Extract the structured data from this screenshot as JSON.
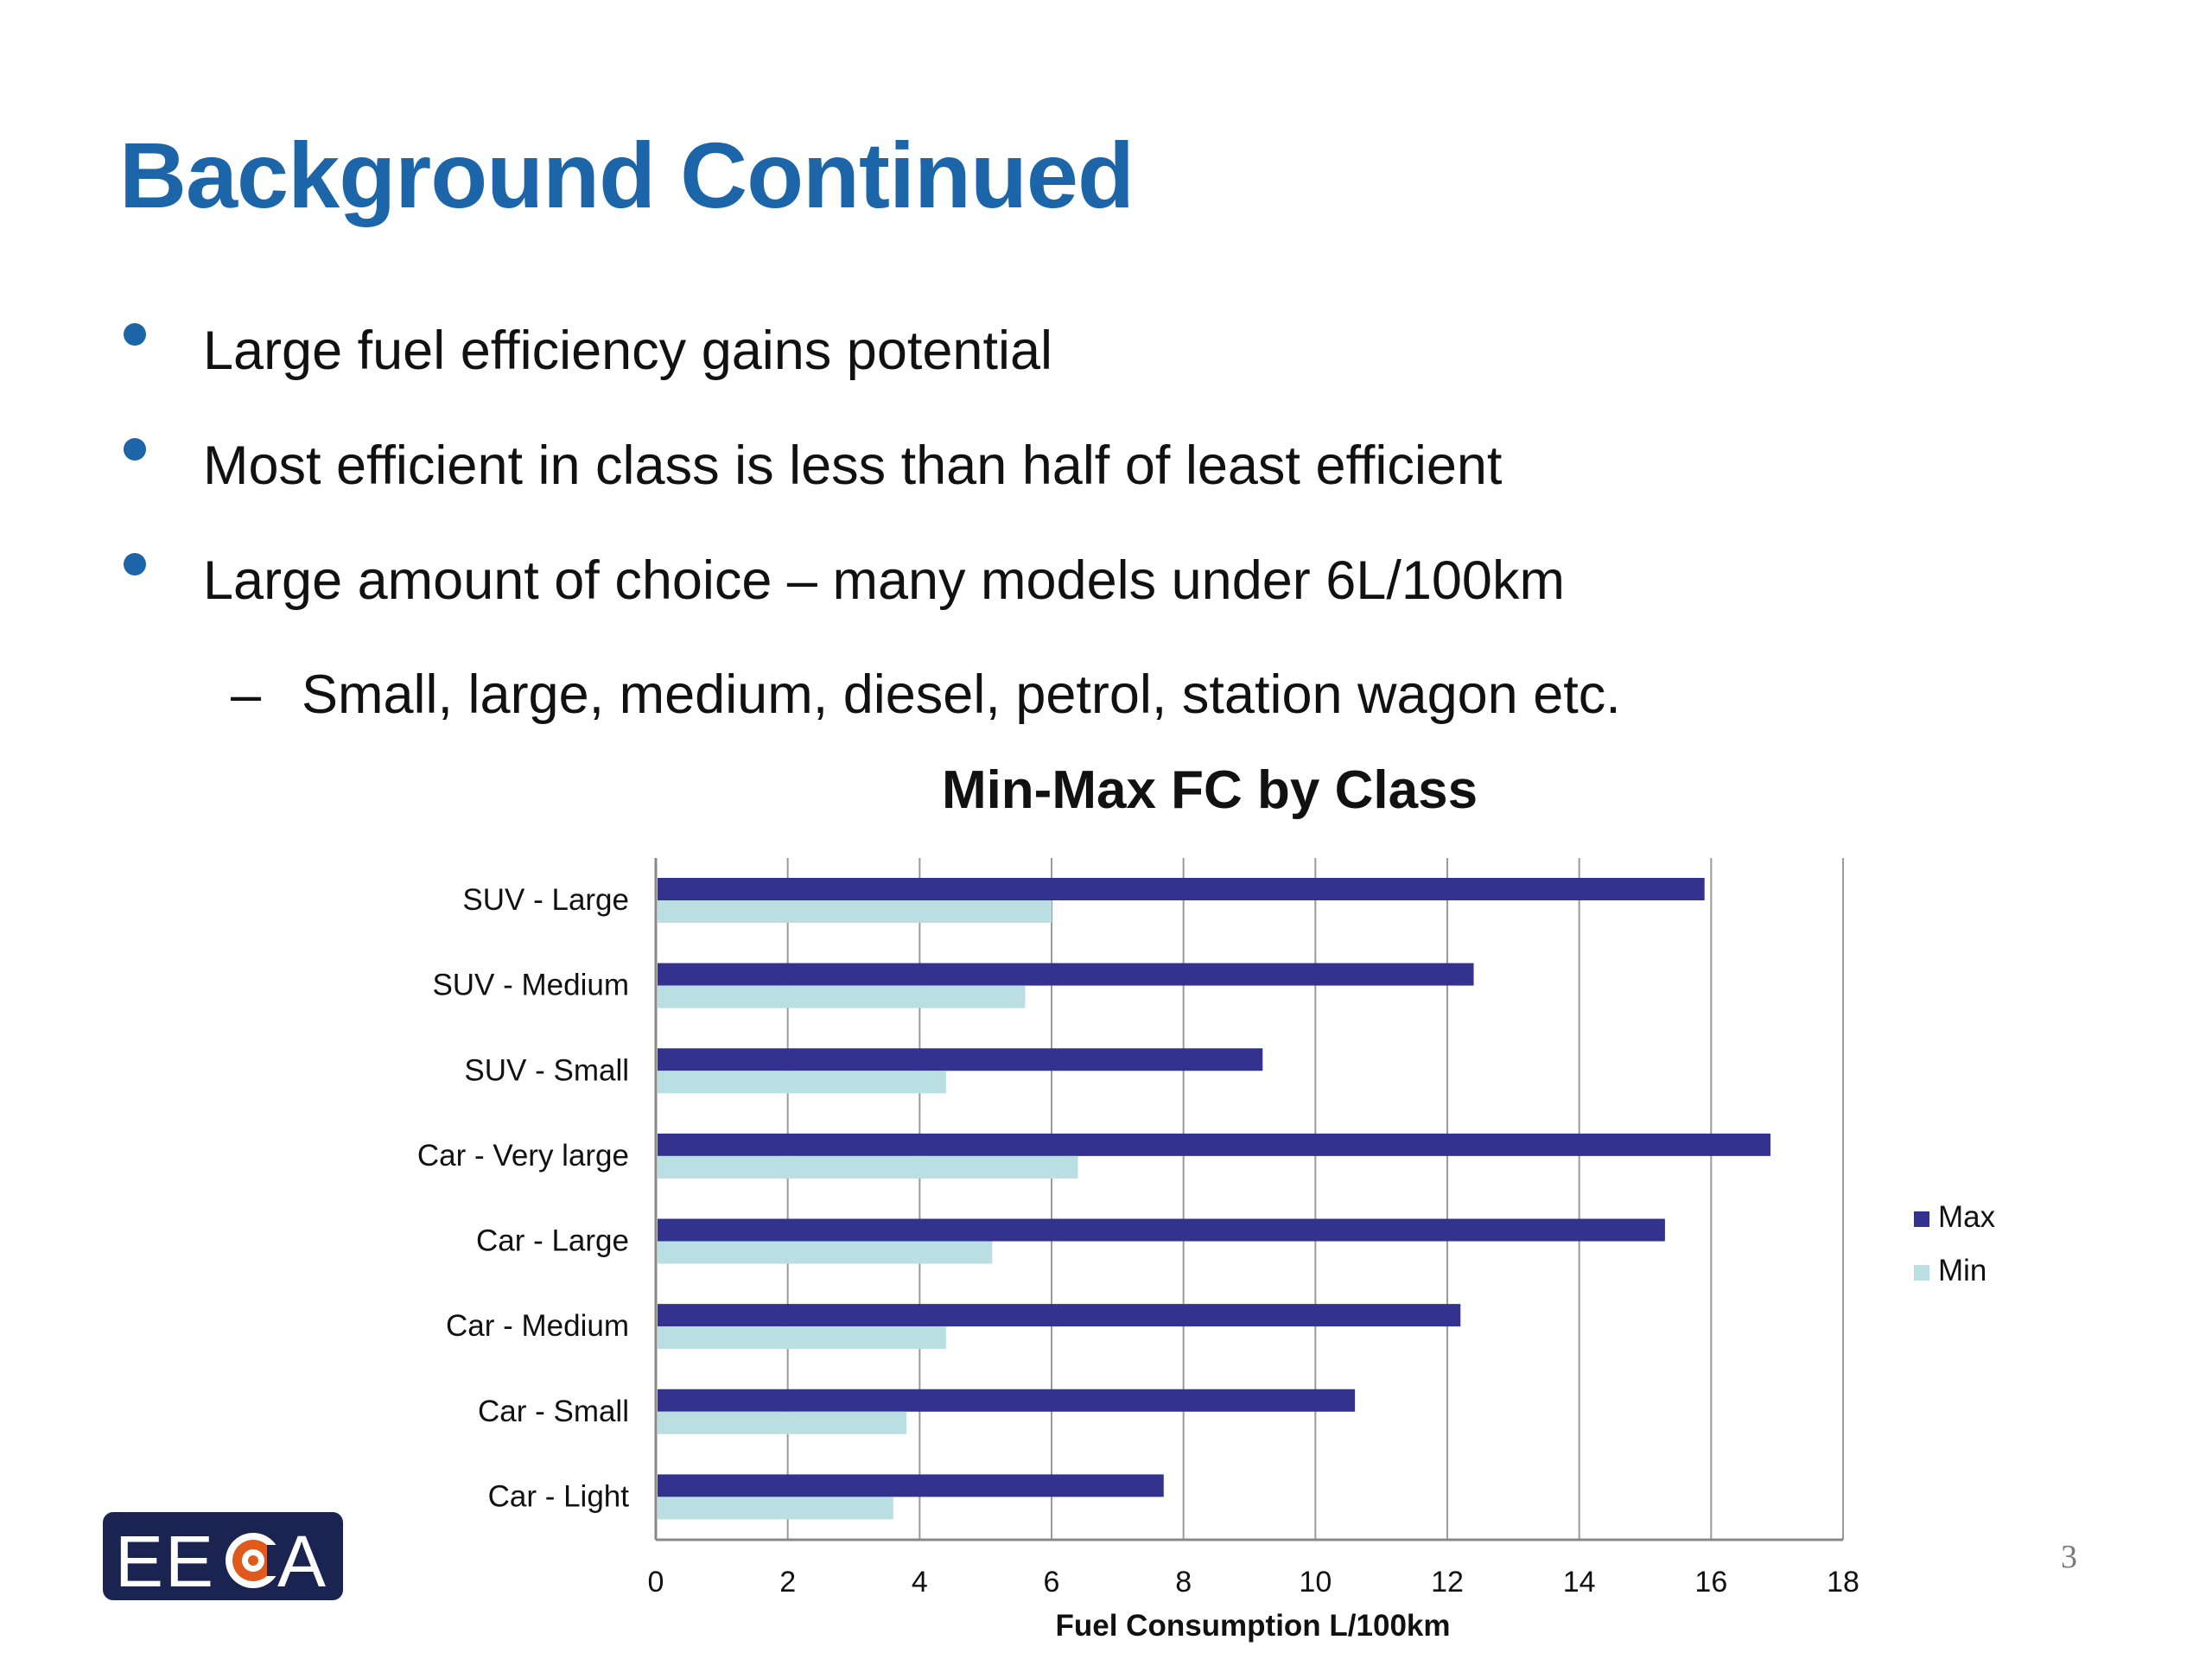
{
  "slide": {
    "title": "Background Continued",
    "bullets": [
      "Large fuel efficiency gains potential",
      "Most efficient in class is less than half of least efficient",
      "Large amount of choice – many models under 6L/100km"
    ],
    "sub_dash": "–",
    "sub_bullet": "Small, large, medium, diesel, petrol, station wagon etc.",
    "page_number": "3",
    "logo_text": "EECA"
  },
  "colors": {
    "title": "#1b65a8",
    "bullet": "#1b65a8",
    "max": "#33338f",
    "min": "#b9dfe3",
    "logo_bg": "#1b2450"
  },
  "chart_data": {
    "type": "bar",
    "orientation": "horizontal",
    "title": "Min-Max FC by Class",
    "xlabel": "Fuel Consumption L/100km",
    "ylabel": "",
    "categories": [
      "SUV - Large",
      "SUV - Medium",
      "SUV - Small",
      "Car - Very large",
      "Car - Large",
      "Car - Medium",
      "Car - Small",
      "Car - Light"
    ],
    "series": [
      {
        "name": "Max",
        "color": "#33338f",
        "values": [
          15.9,
          12.4,
          9.2,
          16.9,
          15.3,
          12.2,
          10.6,
          7.7
        ]
      },
      {
        "name": "Min",
        "color": "#b9dfe3",
        "values": [
          6.0,
          5.6,
          4.4,
          6.4,
          5.1,
          4.4,
          3.8,
          3.6
        ]
      }
    ],
    "xlim": [
      0,
      18
    ],
    "xticks": [
      0,
      2,
      4,
      6,
      8,
      10,
      12,
      14,
      16,
      18
    ],
    "grid": true,
    "legend": "right"
  }
}
